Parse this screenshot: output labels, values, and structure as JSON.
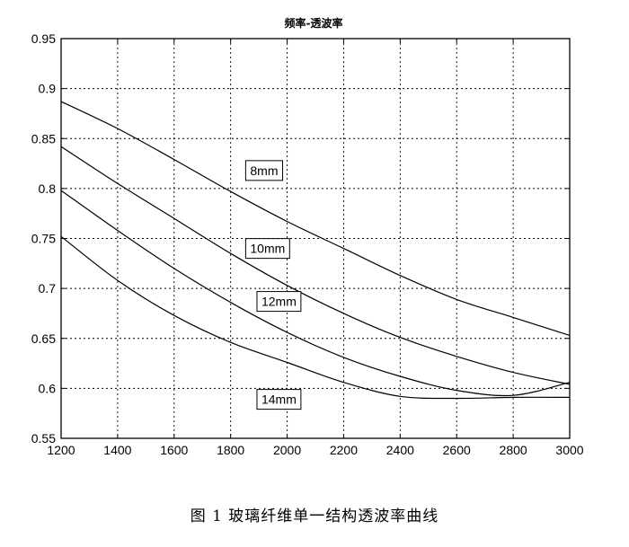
{
  "figure": {
    "caption": "图 1   玻璃纤维单一结构透波率曲线"
  },
  "chart_data": {
    "type": "line",
    "title": "频率-透波率",
    "xlabel": "",
    "ylabel": "",
    "xlim": [
      1200,
      3000
    ],
    "ylim": [
      0.55,
      0.95
    ],
    "xticks": [
      1200,
      1400,
      1600,
      1800,
      2000,
      2200,
      2400,
      2600,
      2800,
      3000
    ],
    "yticks": [
      0.55,
      0.6,
      0.65,
      0.7,
      0.75,
      0.8,
      0.85,
      0.9,
      0.95
    ],
    "xtick_labels": [
      "1200",
      "1400",
      "1600",
      "1800",
      "2000",
      "2200",
      "2400",
      "2600",
      "2800",
      "3000"
    ],
    "ytick_labels": [
      "0.55",
      "0.6",
      "0.65",
      "0.7",
      "0.75",
      "0.8",
      "0.85",
      "0.9",
      "0.95"
    ],
    "grid": true,
    "grid_style": "dotted",
    "line_color": "#000000",
    "series": [
      {
        "name": "8mm",
        "label_at": [
          1850,
          0.818
        ],
        "x": [
          1200,
          1400,
          1600,
          1800,
          2000,
          2200,
          2400,
          2600,
          2800,
          3000
        ],
        "y": [
          0.887,
          0.86,
          0.829,
          0.797,
          0.767,
          0.74,
          0.713,
          0.689,
          0.671,
          0.653
        ]
      },
      {
        "name": "10mm",
        "label_at": [
          1850,
          0.74
        ],
        "x": [
          1200,
          1400,
          1600,
          1800,
          2000,
          2200,
          2400,
          2600,
          2800,
          3000
        ],
        "y": [
          0.842,
          0.805,
          0.77,
          0.735,
          0.703,
          0.675,
          0.651,
          0.632,
          0.616,
          0.604
        ]
      },
      {
        "name": "12mm",
        "label_at": [
          1890,
          0.687
        ],
        "x": [
          1200,
          1400,
          1600,
          1800,
          2000,
          2200,
          2400,
          2600,
          2800,
          3000
        ],
        "y": [
          0.798,
          0.758,
          0.72,
          0.686,
          0.656,
          0.631,
          0.612,
          0.598,
          0.593,
          0.606
        ]
      },
      {
        "name": "14mm",
        "label_at": [
          1890,
          0.589
        ],
        "x": [
          1200,
          1400,
          1600,
          1800,
          2000,
          2200,
          2400,
          2600,
          2800,
          3000
        ],
        "y": [
          0.752,
          0.708,
          0.673,
          0.646,
          0.626,
          0.606,
          0.592,
          0.59,
          0.591,
          0.591
        ]
      }
    ]
  }
}
